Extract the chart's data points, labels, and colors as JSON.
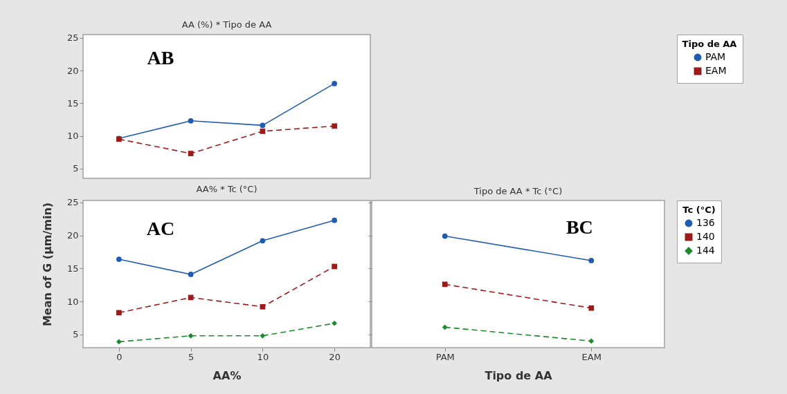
{
  "chart_data": [
    {
      "type": "line",
      "title": "AA (%) * Tipo de AA",
      "categories": [
        "0",
        "5",
        "10",
        "20"
      ],
      "ylim": [
        3.5,
        25.5
      ],
      "yticks": [
        5,
        10,
        15,
        20,
        25
      ],
      "tick_labels": "y",
      "legend": "top right",
      "legend_title": "Tipo de AA",
      "annotations": [
        "AB"
      ],
      "grid": false,
      "series": [
        {
          "name": "PAM",
          "color": "#1f5cb0",
          "marker": "circle",
          "line_style": "solid",
          "values": [
            9.6,
            12.3,
            11.6,
            18.0
          ]
        },
        {
          "name": "EAM",
          "color": "#9b1b1b",
          "marker": "square",
          "line_style": "dashed",
          "values": [
            9.5,
            7.3,
            10.7,
            11.5
          ]
        }
      ]
    },
    {
      "type": "line",
      "title": "AA% * Tc (°C)",
      "categories": [
        "0",
        "5",
        "10",
        "20"
      ],
      "xlabel": "AA%",
      "ylabel": "Mean of G (µm/min)",
      "ylim": [
        3,
        25.3
      ],
      "yticks": [
        5,
        10,
        15,
        20,
        25
      ],
      "annotations": [
        "AC"
      ],
      "grid": false,
      "series": [
        {
          "color": "#1f5cb0",
          "marker": "circle",
          "line_style": "solid",
          "values": [
            16.4,
            14.1,
            19.2,
            22.3
          ]
        },
        {
          "color": "#9b1b1b",
          "marker": "square",
          "line_style": "dashed",
          "values": [
            8.3,
            10.6,
            9.2,
            15.3
          ]
        },
        {
          "color": "#1a8a2a",
          "marker": "diamond",
          "line_style": "dashed",
          "values": [
            3.9,
            4.8,
            4.8,
            6.7
          ]
        }
      ]
    },
    {
      "type": "line",
      "title": "Tipo de AA * Tc (°C)",
      "categories": [
        "PAM",
        "EAM"
      ],
      "xlabel": "Tipo de AA",
      "ylim": [
        3,
        25.3
      ],
      "yticks": [
        5,
        10,
        15,
        20,
        25
      ],
      "tick_labels": "x",
      "legend": "right",
      "legend_title": "Tc (°C)",
      "annotations": [
        "BC"
      ],
      "grid": false,
      "series": [
        {
          "name": "136",
          "color": "#1f5cb0",
          "marker": "circle",
          "line_style": "solid",
          "values": [
            19.9,
            16.2
          ]
        },
        {
          "name": "140",
          "color": "#9b1b1b",
          "marker": "square",
          "line_style": "dashed",
          "values": [
            12.6,
            9.0
          ]
        },
        {
          "name": "144",
          "color": "#1a8a2a",
          "marker": "diamond",
          "line_style": "dashed",
          "values": [
            6.1,
            4.0
          ]
        }
      ]
    }
  ]
}
